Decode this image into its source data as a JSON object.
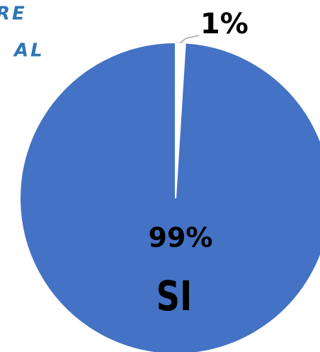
{
  "chart_data": {
    "type": "pie",
    "categories": [
      null,
      "SI"
    ],
    "values": [
      1,
      99
    ],
    "value_labels": [
      "1%",
      "99%"
    ],
    "colors": [
      "#ffffff",
      "#4472c4"
    ],
    "annotations": [
      "RE",
      "AL"
    ]
  }
}
